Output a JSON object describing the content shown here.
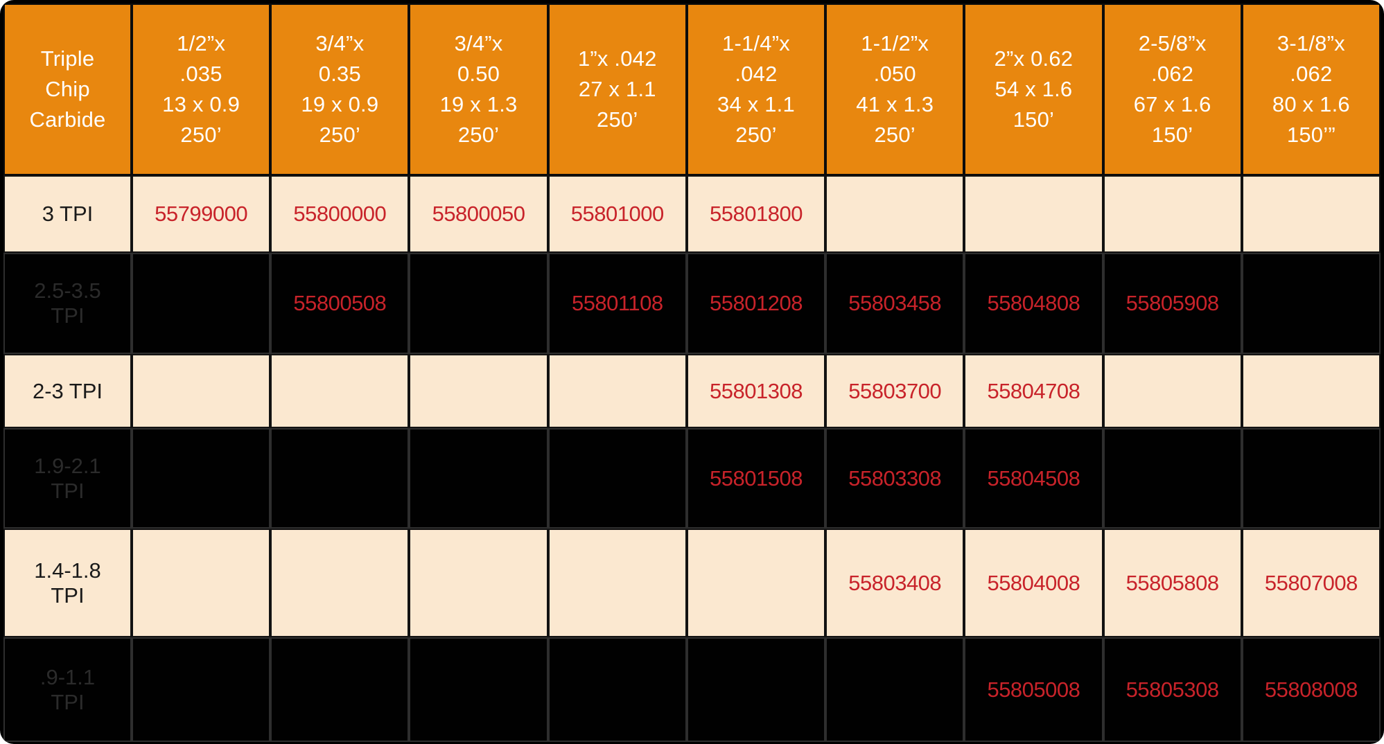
{
  "colors": {
    "header_orange": "#E8870F",
    "row_cream": "#FBE8D0",
    "row_black": "#010101",
    "part_number_red": "#C8232A",
    "header_text_white": "#FFFFFF",
    "dark_row_label_gray": "#2B2B2B"
  },
  "table": {
    "corner_label": "Triple\nChip\nCarbide",
    "columns": [
      "1/2”x\n.035\n13 x  0.9\n250’",
      "3/4”x\n0.35\n19 x 0.9\n250’",
      "3/4”x\n0.50\n19 x 1.3\n250’",
      "1”x .042\n27 x 1.1\n250’",
      "1-1/4”x\n.042\n34 x 1.1\n250’",
      "1-1/2”x\n.050\n41 x 1.3\n250’",
      "2”x 0.62\n54 x 1.6\n150’",
      "2-5/8”x\n.062\n67 x 1.6\n150’",
      "3-1/8”x\n.062\n80 x 1.6\n150’”"
    ],
    "rows": [
      {
        "label": "3 TPI",
        "tone": "cream",
        "cells": [
          "55799000",
          "55800000",
          "55800050",
          "55801000",
          "55801800",
          "",
          "",
          "",
          ""
        ]
      },
      {
        "label": "2.5-3.5\nTPI",
        "tone": "dark",
        "cells": [
          "",
          "55800508",
          "",
          "55801108",
          "55801208",
          "55803458",
          "55804808",
          "55805908",
          ""
        ]
      },
      {
        "label": "2-3 TPI",
        "tone": "cream",
        "cells": [
          "",
          "",
          "",
          "",
          "55801308",
          "55803700",
          "55804708",
          "",
          ""
        ]
      },
      {
        "label": "1.9-2.1\nTPI",
        "tone": "dark",
        "cells": [
          "",
          "",
          "",
          "",
          "55801508",
          "55803308",
          "55804508",
          "",
          ""
        ]
      },
      {
        "label": "1.4-1.8\nTPI",
        "tone": "cream",
        "cells": [
          "",
          "",
          "",
          "",
          "",
          "55803408",
          "55804008",
          "55805808",
          "55807008"
        ]
      },
      {
        "label": ".9-1.1\nTPI",
        "tone": "dark",
        "cells": [
          "",
          "",
          "",
          "",
          "",
          "",
          "55805008",
          "55805308",
          "55808008"
        ]
      }
    ]
  }
}
